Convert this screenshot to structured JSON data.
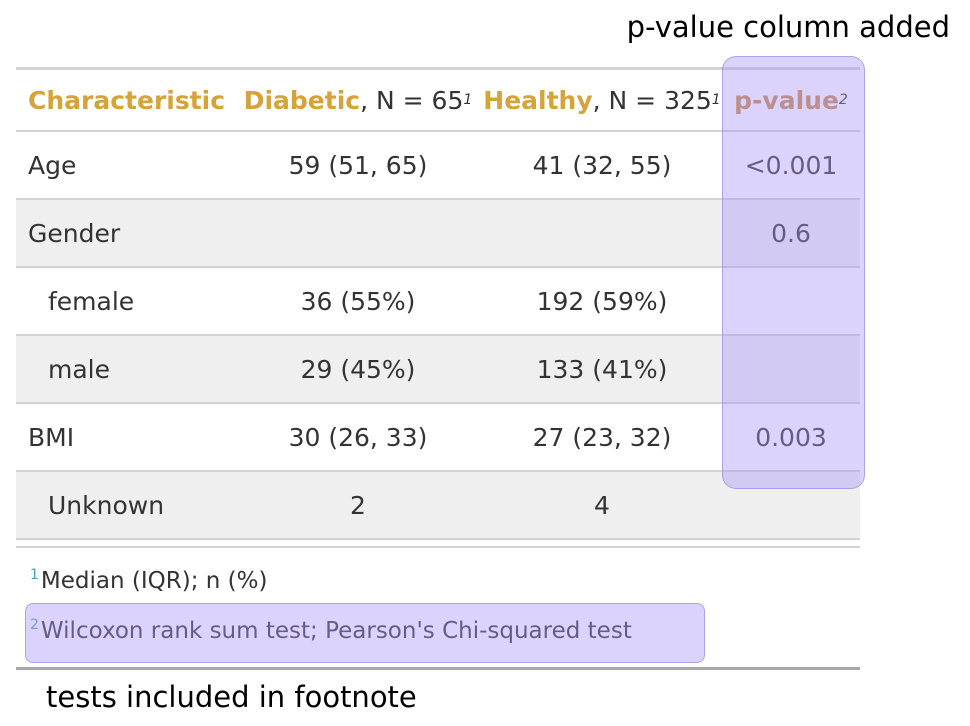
{
  "annotations": {
    "top": "p-value column added",
    "bottom": "tests included in footnote"
  },
  "header": {
    "characteristic": "Characteristic",
    "diabetic": {
      "label": "Diabetic",
      "n_text": ", N = 65",
      "footnote_mark": "1"
    },
    "healthy": {
      "label": "Healthy",
      "n_text": ", N = 325",
      "footnote_mark": "1"
    },
    "p_value": {
      "label": "p-value",
      "footnote_mark": "2"
    }
  },
  "rows": [
    {
      "characteristic": "Age",
      "diabetic": "59 (51, 65)",
      "healthy": "41 (32, 55)",
      "p_value": "<0.001"
    },
    {
      "characteristic": "Gender",
      "diabetic": "",
      "healthy": "",
      "p_value": "0.6"
    },
    {
      "characteristic": "female",
      "diabetic": "36 (55%)",
      "healthy": "192 (59%)",
      "p_value": ""
    },
    {
      "characteristic": "male",
      "diabetic": "29 (45%)",
      "healthy": "133 (41%)",
      "p_value": ""
    },
    {
      "characteristic": "BMI",
      "diabetic": "30 (26, 33)",
      "healthy": "27 (23, 32)",
      "p_value": "0.003"
    },
    {
      "characteristic": "Unknown",
      "diabetic": "2",
      "healthy": "4",
      "p_value": ""
    }
  ],
  "footnotes": [
    {
      "mark": "1",
      "text": "Median (IQR); n (%)"
    },
    {
      "mark": "2",
      "text": "Wilcoxon rank sum test; Pearson's Chi-squared test"
    }
  ],
  "colors": {
    "header_accent": "#d6a338",
    "p_value_header": "#c98a45",
    "highlight": "#aa96f5",
    "footnote_mark": "#4a9fb5"
  }
}
